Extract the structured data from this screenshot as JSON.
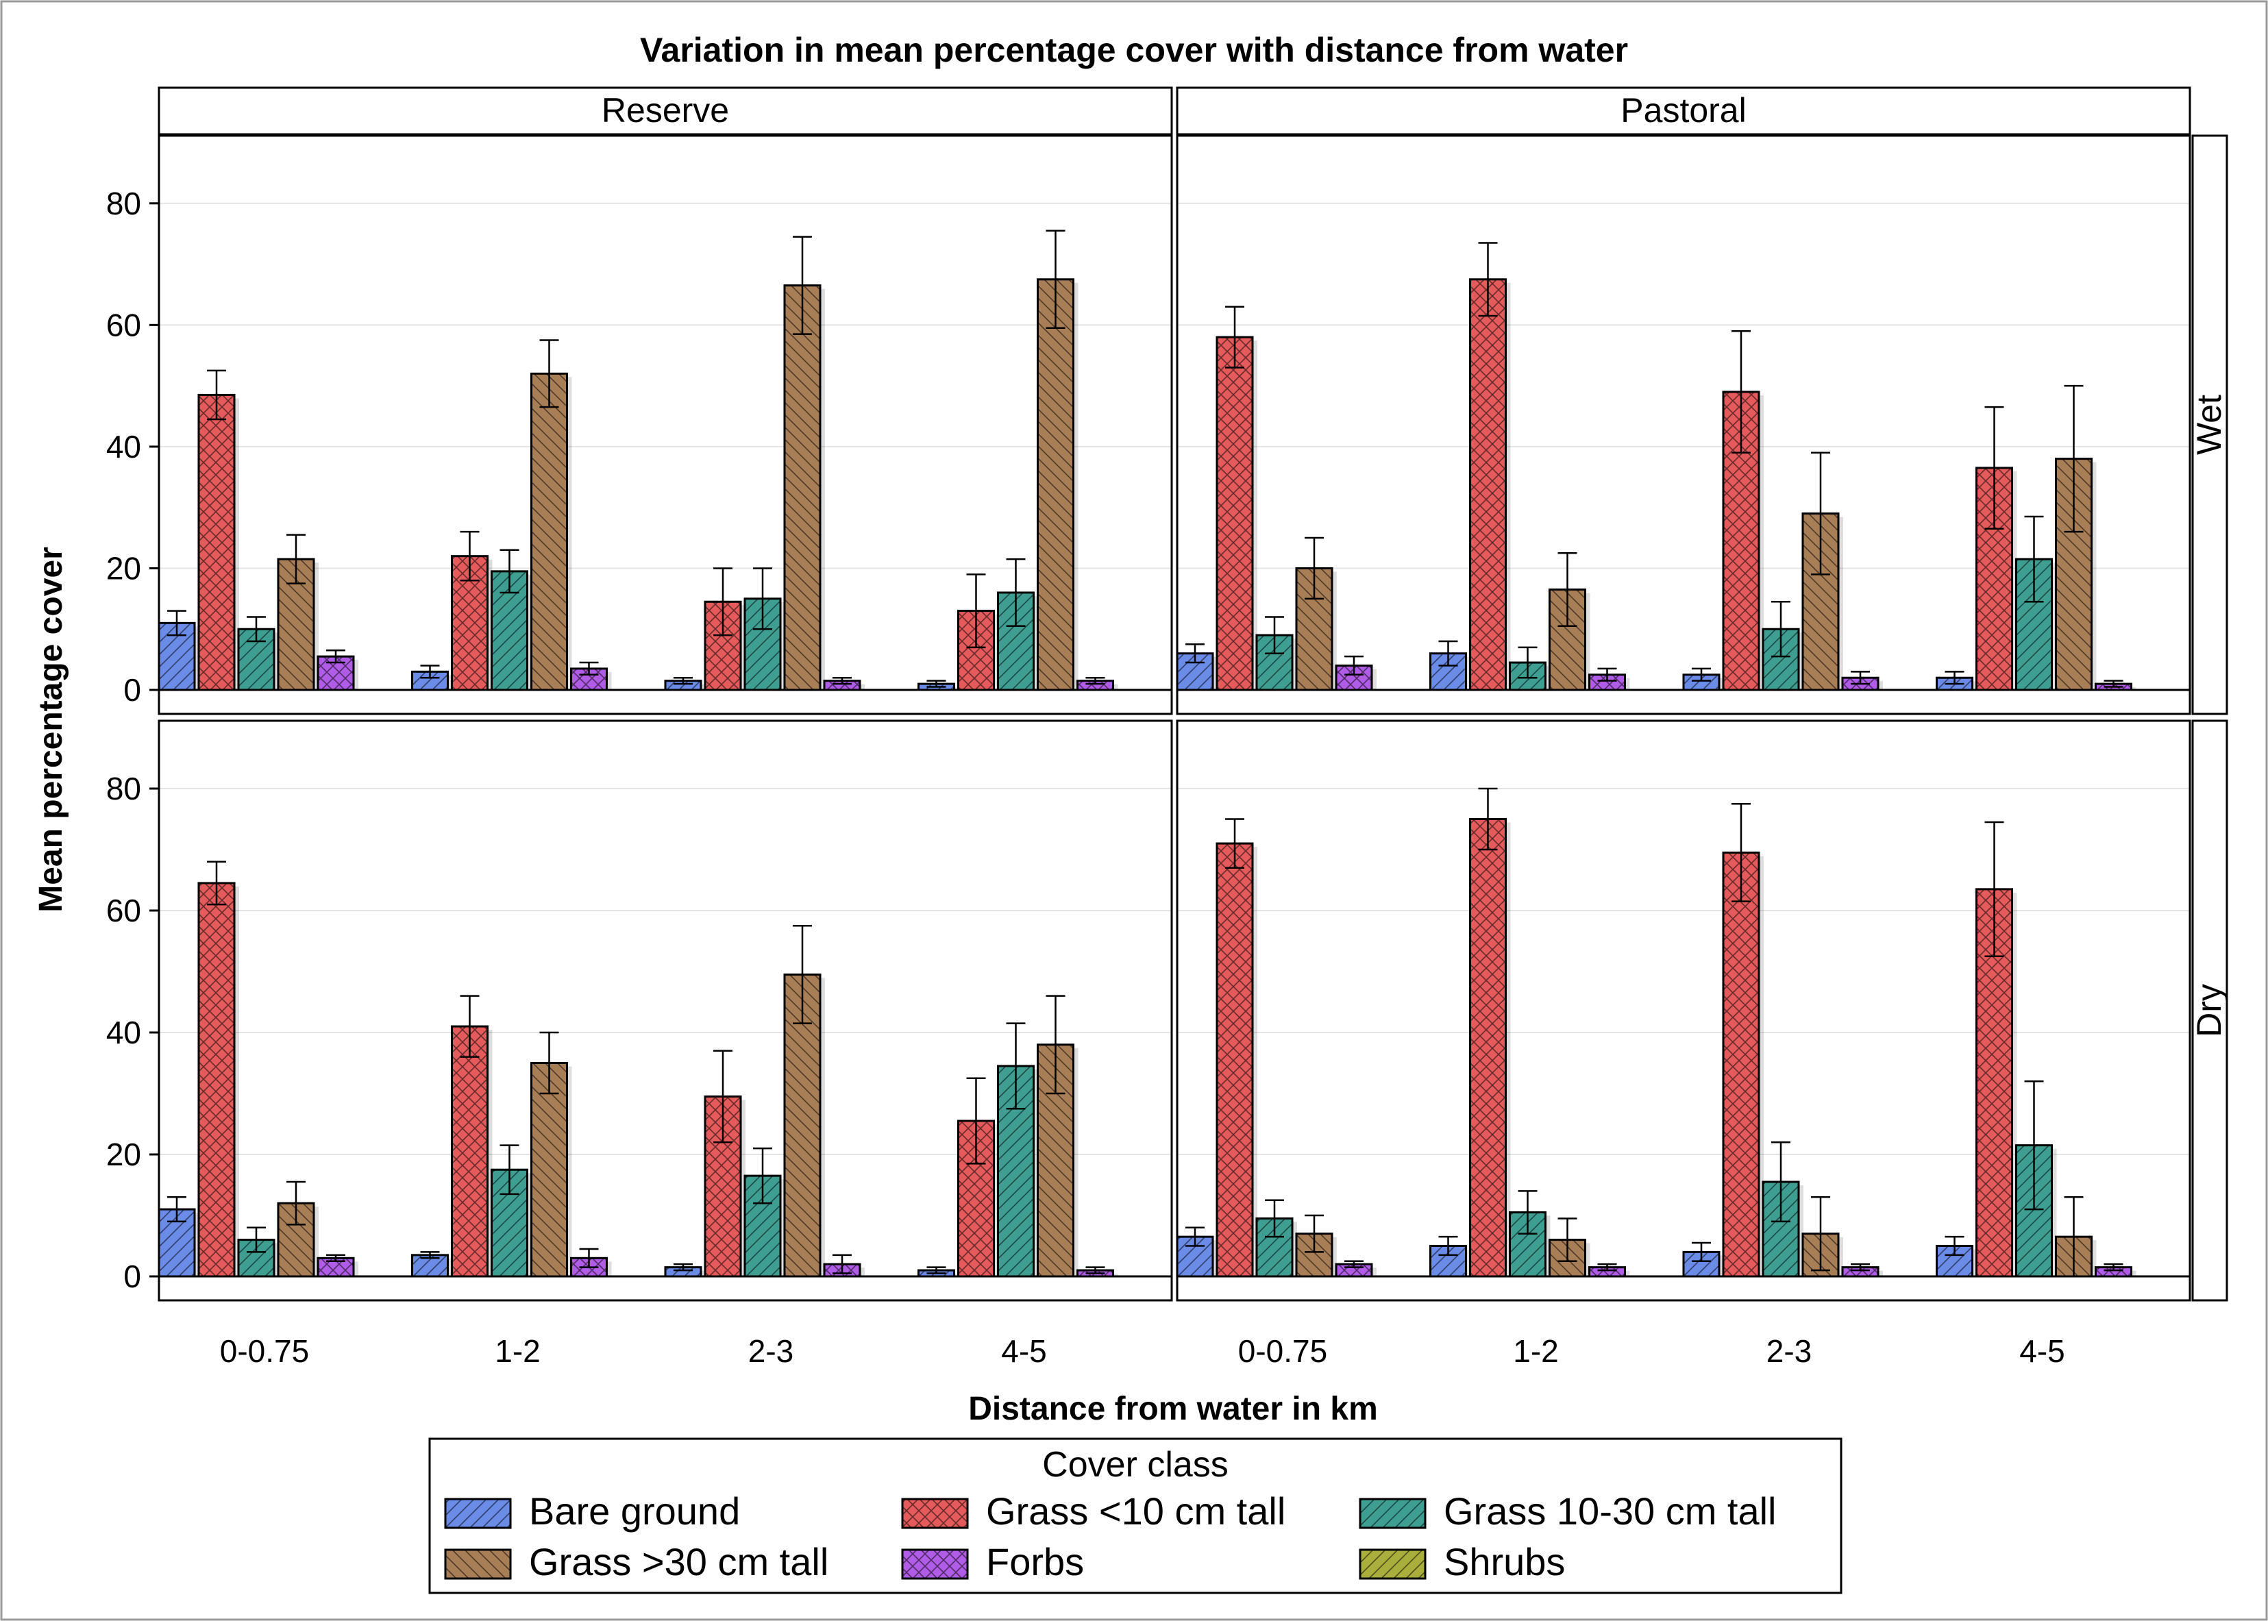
{
  "chart_data": {
    "type": "bar",
    "title": "Variation in mean percentage cover with distance from water",
    "xlabel": "Distance from water in km",
    "ylabel": "Mean percentage cover",
    "ylim": [
      0,
      90
    ],
    "yticks": [
      0,
      20,
      40,
      60,
      80
    ],
    "categories": [
      "0-0.75",
      "1-2",
      "2-3",
      "4-5"
    ],
    "column_panels": [
      "Reserve",
      "Pastoral"
    ],
    "row_panels": [
      "Wet",
      "Dry"
    ],
    "grid": "horizontal",
    "legend": {
      "title": "Cover class",
      "placement": "bottom-center",
      "entries": [
        {
          "name": "Bare ground",
          "color": "#6A8BE6",
          "pattern": "diagonal"
        },
        {
          "name": "Grass <10 cm tall",
          "color": "#E55B5B",
          "pattern": "crosshatch"
        },
        {
          "name": "Grass 10-30 cm tall",
          "color": "#3F9E92",
          "pattern": "diagonal"
        },
        {
          "name": "Grass >30 cm tall",
          "color": "#A87E57",
          "pattern": "back-diagonal"
        },
        {
          "name": "Forbs",
          "color": "#B05CE6",
          "pattern": "crosshatch"
        },
        {
          "name": "Shrubs",
          "color": "#A9AE3C",
          "pattern": "diagonal"
        }
      ]
    },
    "series_names": [
      "Bare ground",
      "Grass <10 cm tall",
      "Grass 10-30 cm tall",
      "Grass >30 cm tall",
      "Forbs",
      "Shrubs"
    ],
    "panels": [
      {
        "column": "Reserve",
        "row": "Wet",
        "values": [
          [
            11,
            48.5,
            10,
            21.5,
            5.5,
            0
          ],
          [
            3,
            22,
            19.5,
            52,
            3.5,
            0
          ],
          [
            1.5,
            14.5,
            15,
            66.5,
            1.5,
            0
          ],
          [
            1,
            13,
            16,
            67.5,
            1.5,
            0
          ]
        ],
        "errors": [
          [
            2,
            4,
            2,
            4,
            1,
            0
          ],
          [
            1,
            4,
            3.5,
            5.5,
            1,
            0
          ],
          [
            0.5,
            5.5,
            5,
            8,
            0.5,
            0
          ],
          [
            0.5,
            6,
            5.5,
            8,
            0.5,
            0
          ]
        ]
      },
      {
        "column": "Pastoral",
        "row": "Wet",
        "values": [
          [
            6,
            58,
            9,
            20,
            4,
            0
          ],
          [
            6,
            67.5,
            4.5,
            16.5,
            2.5,
            0
          ],
          [
            2.5,
            49,
            10,
            29,
            2,
            0
          ],
          [
            2,
            36.5,
            21.5,
            38,
            1,
            0
          ]
        ],
        "errors": [
          [
            1.5,
            5,
            3,
            5,
            1.5,
            0
          ],
          [
            2,
            6,
            2.5,
            6,
            1,
            0
          ],
          [
            1,
            10,
            4.5,
            10,
            1,
            0
          ],
          [
            1,
            10,
            7,
            12,
            0.5,
            0
          ]
        ]
      },
      {
        "column": "Reserve",
        "row": "Dry",
        "values": [
          [
            11,
            64.5,
            6,
            12,
            3,
            0
          ],
          [
            3.5,
            41,
            17.5,
            35,
            3,
            0
          ],
          [
            1.5,
            29.5,
            16.5,
            49.5,
            2,
            0
          ],
          [
            1,
            25.5,
            34.5,
            38,
            1,
            0
          ]
        ],
        "errors": [
          [
            2,
            3.5,
            2,
            3.5,
            0.5,
            0
          ],
          [
            0.5,
            5,
            4,
            5,
            1.5,
            0
          ],
          [
            0.5,
            7.5,
            4.5,
            8,
            1.5,
            0
          ],
          [
            0.5,
            7,
            7,
            8,
            0.5,
            0
          ]
        ]
      },
      {
        "column": "Pastoral",
        "row": "Dry",
        "values": [
          [
            6.5,
            71,
            9.5,
            7,
            2,
            0
          ],
          [
            5,
            75,
            10.5,
            6,
            1.5,
            0
          ],
          [
            4,
            69.5,
            15.5,
            7,
            1.5,
            0
          ],
          [
            5,
            63.5,
            21.5,
            6.5,
            1.5,
            0
          ]
        ],
        "errors": [
          [
            1.5,
            4,
            3,
            3,
            0.5,
            0
          ],
          [
            1.5,
            5,
            3.5,
            3.5,
            0.5,
            0
          ],
          [
            1.5,
            8,
            6.5,
            6,
            0.5,
            0
          ],
          [
            1.5,
            11,
            10.5,
            6.5,
            0.5,
            0
          ]
        ]
      }
    ]
  }
}
